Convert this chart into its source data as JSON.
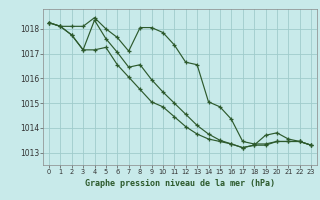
{
  "title": "Graphe pression niveau de la mer (hPa)",
  "bg_color": "#c8eaea",
  "grid_color": "#a0cccc",
  "line_color": "#2d5a2d",
  "xlim": [
    -0.5,
    23.5
  ],
  "ylim": [
    1012.5,
    1018.8
  ],
  "yticks": [
    1013,
    1014,
    1015,
    1016,
    1017,
    1018
  ],
  "xticks": [
    0,
    1,
    2,
    3,
    4,
    5,
    6,
    7,
    8,
    9,
    10,
    11,
    12,
    13,
    14,
    15,
    16,
    17,
    18,
    19,
    20,
    21,
    22,
    23
  ],
  "series": [
    {
      "x": [
        0,
        1,
        2,
        3,
        4,
        5,
        6,
        7,
        8,
        9,
        10,
        11,
        12,
        13,
        14,
        15,
        16,
        17,
        18,
        19,
        20,
        21,
        22,
        23
      ],
      "y": [
        1018.25,
        1018.1,
        1018.1,
        1018.1,
        1018.45,
        1018.0,
        1017.65,
        1017.1,
        1018.05,
        1018.05,
        1017.85,
        1017.35,
        1016.65,
        1016.55,
        1015.05,
        1014.85,
        1014.35,
        1013.45,
        1013.35,
        1013.35,
        1013.45,
        1013.45,
        1013.45,
        1013.3
      ]
    },
    {
      "x": [
        0,
        1,
        2,
        3,
        4,
        5,
        6,
        7,
        8,
        9,
        10,
        11,
        12,
        13,
        14,
        15,
        16,
        17,
        18,
        19,
        20,
        21,
        22,
        23
      ],
      "y": [
        1018.25,
        1018.1,
        1017.75,
        1017.15,
        1017.15,
        1017.25,
        1016.55,
        1016.05,
        1015.55,
        1015.05,
        1014.85,
        1014.45,
        1014.05,
        1013.75,
        1013.55,
        1013.45,
        1013.35,
        1013.2,
        1013.3,
        1013.7,
        1013.8,
        1013.55,
        1013.45,
        1013.3
      ]
    },
    {
      "x": [
        0,
        1,
        2,
        3,
        4,
        5,
        6,
        7,
        8,
        9,
        10,
        11,
        12,
        13,
        14,
        15,
        16,
        17,
        18,
        19,
        20,
        21,
        22,
        23
      ],
      "y": [
        1018.25,
        1018.1,
        1017.75,
        1017.15,
        1018.35,
        1017.6,
        1017.05,
        1016.45,
        1016.55,
        1015.95,
        1015.45,
        1015.0,
        1014.55,
        1014.1,
        1013.75,
        1013.5,
        1013.35,
        1013.2,
        1013.3,
        1013.3,
        1013.45,
        1013.45,
        1013.45,
        1013.3
      ]
    }
  ]
}
